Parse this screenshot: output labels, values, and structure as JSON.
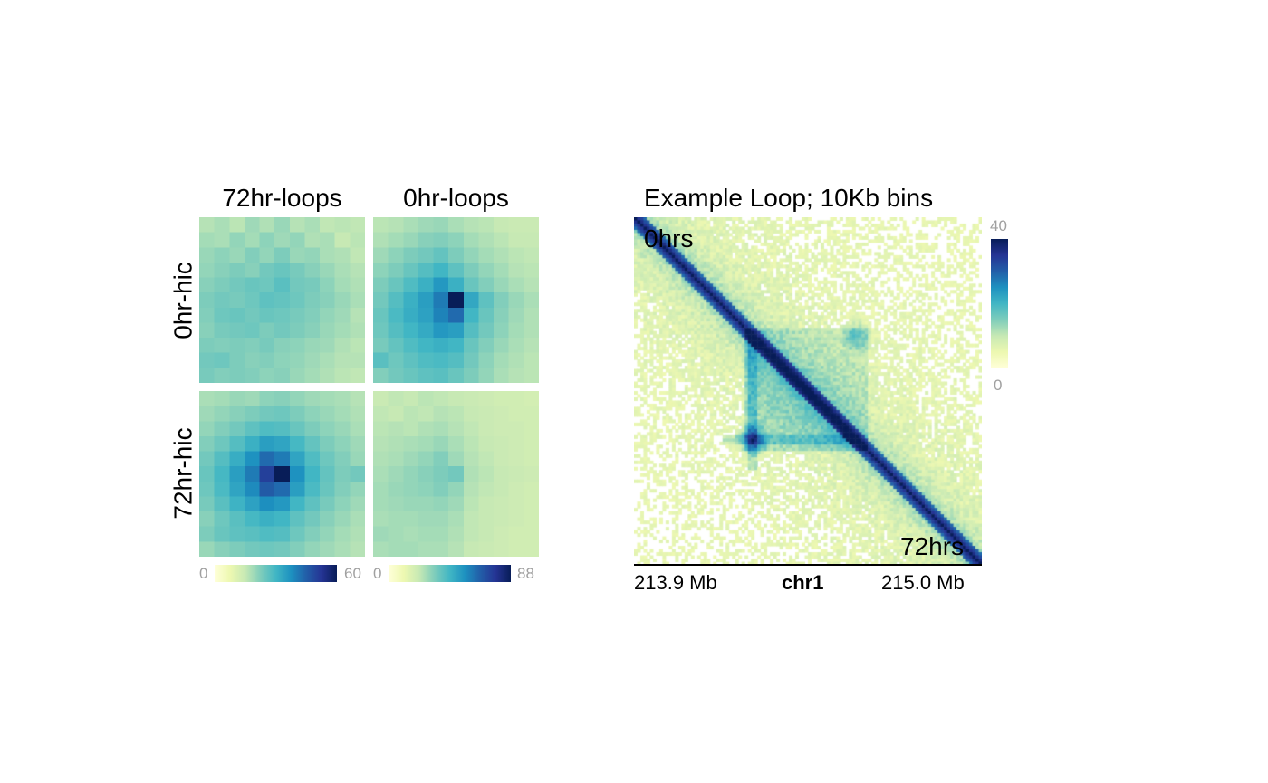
{
  "chart_data": [
    {
      "type": "heatmap",
      "panel": "aggregate-peak-analysis",
      "columns": [
        "72hr-loops",
        "0hr-loops"
      ],
      "rows": [
        "0hr-hic",
        "72hr-hic"
      ],
      "colorbars": [
        {
          "column": "72hr-loops",
          "min": "0",
          "max": "60"
        },
        {
          "column": "0hr-loops",
          "min": "0",
          "max": "88"
        }
      ],
      "colormap": [
        "#ffffd9",
        "#edf8b1",
        "#c7e9b4",
        "#7fcdbb",
        "#41b6c4",
        "#1d91c0",
        "#225ea8",
        "#253494",
        "#081d58"
      ],
      "grid": 11,
      "matrices": [
        {
          "row": "0hr-hic",
          "column": "72hr-loops",
          "scale_max": 60,
          "values": [
            [
              0.28,
              0.3,
              0.27,
              0.32,
              0.29,
              0.33,
              0.28,
              0.3,
              0.26,
              0.27,
              0.26
            ],
            [
              0.31,
              0.3,
              0.34,
              0.31,
              0.35,
              0.32,
              0.34,
              0.29,
              0.3,
              0.25,
              0.27
            ],
            [
              0.33,
              0.35,
              0.33,
              0.37,
              0.34,
              0.38,
              0.33,
              0.34,
              0.3,
              0.29,
              0.26
            ],
            [
              0.34,
              0.36,
              0.38,
              0.36,
              0.4,
              0.42,
              0.39,
              0.36,
              0.33,
              0.3,
              0.28
            ],
            [
              0.36,
              0.38,
              0.4,
              0.42,
              0.41,
              0.45,
              0.4,
              0.39,
              0.35,
              0.31,
              0.29
            ],
            [
              0.38,
              0.4,
              0.39,
              0.41,
              0.44,
              0.43,
              0.41,
              0.38,
              0.36,
              0.33,
              0.3
            ],
            [
              0.37,
              0.41,
              0.42,
              0.4,
              0.42,
              0.41,
              0.39,
              0.37,
              0.34,
              0.32,
              0.28
            ],
            [
              0.36,
              0.39,
              0.4,
              0.41,
              0.38,
              0.4,
              0.38,
              0.36,
              0.33,
              0.31,
              0.29
            ],
            [
              0.38,
              0.37,
              0.38,
              0.37,
              0.39,
              0.36,
              0.35,
              0.33,
              0.32,
              0.29,
              0.27
            ],
            [
              0.4,
              0.41,
              0.38,
              0.36,
              0.37,
              0.35,
              0.34,
              0.32,
              0.3,
              0.28,
              0.28
            ],
            [
              0.39,
              0.37,
              0.38,
              0.37,
              0.35,
              0.36,
              0.33,
              0.31,
              0.29,
              0.27,
              0.26
            ]
          ]
        },
        {
          "row": "0hr-hic",
          "column": "0hr-loops",
          "scale_max": 88,
          "values": [
            [
              0.27,
              0.28,
              0.3,
              0.32,
              0.33,
              0.3,
              0.28,
              0.27,
              0.25,
              0.24,
              0.24
            ],
            [
              0.29,
              0.31,
              0.33,
              0.36,
              0.37,
              0.35,
              0.31,
              0.29,
              0.27,
              0.25,
              0.25
            ],
            [
              0.32,
              0.35,
              0.38,
              0.4,
              0.43,
              0.38,
              0.34,
              0.31,
              0.29,
              0.27,
              0.26
            ],
            [
              0.35,
              0.38,
              0.42,
              0.46,
              0.5,
              0.44,
              0.38,
              0.34,
              0.31,
              0.28,
              0.27
            ],
            [
              0.38,
              0.42,
              0.47,
              0.52,
              0.6,
              0.52,
              0.42,
              0.37,
              0.33,
              0.3,
              0.28
            ],
            [
              0.4,
              0.46,
              0.52,
              0.58,
              0.68,
              1.0,
              0.55,
              0.44,
              0.37,
              0.33,
              0.3
            ],
            [
              0.42,
              0.48,
              0.53,
              0.57,
              0.66,
              0.72,
              0.5,
              0.42,
              0.36,
              0.32,
              0.29
            ],
            [
              0.41,
              0.46,
              0.5,
              0.54,
              0.6,
              0.58,
              0.46,
              0.4,
              0.35,
              0.31,
              0.29
            ],
            [
              0.39,
              0.43,
              0.47,
              0.5,
              0.52,
              0.5,
              0.42,
              0.37,
              0.33,
              0.3,
              0.28
            ],
            [
              0.45,
              0.41,
              0.44,
              0.47,
              0.48,
              0.46,
              0.4,
              0.35,
              0.31,
              0.29,
              0.27
            ],
            [
              0.37,
              0.4,
              0.42,
              0.44,
              0.45,
              0.42,
              0.38,
              0.34,
              0.3,
              0.28,
              0.27
            ]
          ]
        },
        {
          "row": "72hr-hic",
          "column": "72hr-loops",
          "scale_max": 60,
          "values": [
            [
              0.3,
              0.31,
              0.33,
              0.32,
              0.35,
              0.36,
              0.34,
              0.32,
              0.31,
              0.3,
              0.28
            ],
            [
              0.32,
              0.34,
              0.36,
              0.38,
              0.4,
              0.41,
              0.38,
              0.35,
              0.33,
              0.31,
              0.29
            ],
            [
              0.34,
              0.37,
              0.4,
              0.44,
              0.47,
              0.46,
              0.42,
              0.38,
              0.35,
              0.33,
              0.3
            ],
            [
              0.37,
              0.41,
              0.46,
              0.52,
              0.58,
              0.56,
              0.49,
              0.43,
              0.38,
              0.35,
              0.32
            ],
            [
              0.4,
              0.46,
              0.53,
              0.62,
              0.72,
              0.68,
              0.56,
              0.47,
              0.41,
              0.37,
              0.33
            ],
            [
              0.42,
              0.49,
              0.58,
              0.68,
              0.84,
              1.0,
              0.62,
              0.5,
              0.43,
              0.38,
              0.4
            ],
            [
              0.41,
              0.48,
              0.56,
              0.64,
              0.76,
              0.72,
              0.58,
              0.48,
              0.42,
              0.37,
              0.34
            ],
            [
              0.39,
              0.45,
              0.51,
              0.57,
              0.63,
              0.6,
              0.5,
              0.44,
              0.39,
              0.35,
              0.32
            ],
            [
              0.36,
              0.41,
              0.45,
              0.49,
              0.52,
              0.5,
              0.44,
              0.4,
              0.36,
              0.33,
              0.3
            ],
            [
              0.38,
              0.42,
              0.44,
              0.45,
              0.47,
              0.46,
              0.41,
              0.37,
              0.34,
              0.31,
              0.29
            ],
            [
              0.33,
              0.36,
              0.38,
              0.4,
              0.41,
              0.4,
              0.37,
              0.34,
              0.32,
              0.3,
              0.28
            ]
          ]
        },
        {
          "row": "72hr-hic",
          "column": "0hr-loops",
          "scale_max": 88,
          "values": [
            [
              0.24,
              0.26,
              0.25,
              0.27,
              0.26,
              0.25,
              0.24,
              0.23,
              0.22,
              0.22,
              0.21
            ],
            [
              0.26,
              0.25,
              0.27,
              0.26,
              0.28,
              0.27,
              0.25,
              0.24,
              0.23,
              0.22,
              0.22
            ],
            [
              0.27,
              0.28,
              0.27,
              0.29,
              0.3,
              0.28,
              0.26,
              0.24,
              0.23,
              0.23,
              0.22
            ],
            [
              0.28,
              0.29,
              0.3,
              0.31,
              0.33,
              0.3,
              0.27,
              0.25,
              0.24,
              0.23,
              0.22
            ],
            [
              0.29,
              0.3,
              0.32,
              0.34,
              0.37,
              0.32,
              0.28,
              0.26,
              0.24,
              0.23,
              0.22
            ],
            [
              0.3,
              0.32,
              0.34,
              0.36,
              0.38,
              0.4,
              0.29,
              0.27,
              0.25,
              0.24,
              0.23
            ],
            [
              0.31,
              0.33,
              0.34,
              0.35,
              0.37,
              0.34,
              0.28,
              0.26,
              0.25,
              0.23,
              0.22
            ],
            [
              0.31,
              0.32,
              0.33,
              0.33,
              0.34,
              0.32,
              0.27,
              0.25,
              0.24,
              0.23,
              0.22
            ],
            [
              0.3,
              0.31,
              0.31,
              0.32,
              0.32,
              0.3,
              0.26,
              0.25,
              0.24,
              0.23,
              0.22
            ],
            [
              0.32,
              0.31,
              0.3,
              0.31,
              0.31,
              0.29,
              0.26,
              0.25,
              0.23,
              0.22,
              0.22
            ],
            [
              0.3,
              0.31,
              0.31,
              0.3,
              0.3,
              0.28,
              0.25,
              0.24,
              0.23,
              0.22,
              0.22
            ]
          ]
        }
      ]
    },
    {
      "type": "heatmap",
      "panel": "example-loop",
      "title": "Example Loop; 10Kb bins",
      "upper_label": "0hrs",
      "lower_label": "72hrs",
      "x_start": "213.9 Mb",
      "x_end": "215.0 Mb",
      "chromosome": "chr1",
      "colorbar": {
        "min": "0",
        "max": "40"
      },
      "bins": 110,
      "loop_anchor_bins": [
        37,
        70
      ]
    }
  ]
}
